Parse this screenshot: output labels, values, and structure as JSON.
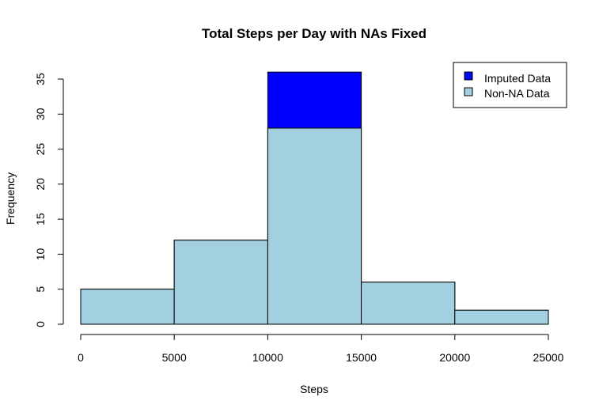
{
  "chart_data": {
    "type": "bar",
    "title": "Total Steps per Day with NAs Fixed",
    "xlabel": "Steps",
    "ylabel": "Frequency",
    "bins": [
      {
        "from": 0,
        "to": 5000
      },
      {
        "from": 5000,
        "to": 10000
      },
      {
        "from": 10000,
        "to": 15000
      },
      {
        "from": 15000,
        "to": 20000
      },
      {
        "from": 20000,
        "to": 25000
      }
    ],
    "series": [
      {
        "name": "Imputed Data",
        "color": "#0000ff",
        "values": [
          5,
          12,
          36,
          6,
          2
        ]
      },
      {
        "name": "Non-NA Data",
        "color": "#a3d0e0",
        "values": [
          5,
          12,
          28,
          6,
          2
        ]
      }
    ],
    "xlim": [
      0,
      25000
    ],
    "ylim": [
      0,
      36
    ],
    "x_ticks": [
      "0",
      "5000",
      "10000",
      "15000",
      "20000",
      "25000"
    ],
    "x_tick_values": [
      0,
      5000,
      10000,
      15000,
      20000,
      25000
    ],
    "y_ticks": [
      "0",
      "5",
      "10",
      "15",
      "20",
      "25",
      "30",
      "35"
    ],
    "y_tick_values": [
      0,
      5,
      10,
      15,
      20,
      25,
      30,
      35
    ],
    "legend": {
      "position": "top-right",
      "entries": [
        {
          "label": "Imputed Data",
          "color": "#0000ff"
        },
        {
          "label": "Non-NA Data",
          "color": "#a3d0e0"
        }
      ]
    },
    "grid": false
  }
}
